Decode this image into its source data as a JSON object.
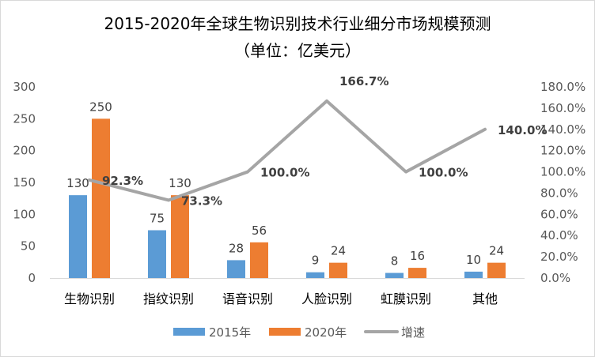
{
  "chart_data": {
    "type": "bar",
    "title": "2015-2020年全球生物识别技术行业细分市场规模预测",
    "subtitle": "（单位：亿美元）",
    "categories": [
      "生物识别",
      "指纹识别",
      "语音识别",
      "人脸识别",
      "虹膜识别",
      "其他"
    ],
    "series": [
      {
        "name": "2015年",
        "type": "bar",
        "axis": "left",
        "color": "#5b9bd5",
        "values": [
          130,
          75,
          28,
          9,
          8,
          10
        ]
      },
      {
        "name": "2020年",
        "type": "bar",
        "axis": "left",
        "color": "#ed7d31",
        "values": [
          250,
          130,
          56,
          24,
          16,
          24
        ]
      },
      {
        "name": "增速",
        "type": "line",
        "axis": "right",
        "color": "#a5a5a5",
        "values": [
          92.3,
          73.3,
          100.0,
          166.7,
          100.0,
          140.0
        ]
      }
    ],
    "bar_labels": [
      [
        "130",
        "75",
        "28",
        "9",
        "8",
        "10"
      ],
      [
        "250",
        "130",
        "56",
        "24",
        "16",
        "24"
      ]
    ],
    "rate_labels": [
      "92.3%",
      "73.3%",
      "100.0%",
      "166.7%",
      "100.0%",
      "140.0%"
    ],
    "y_left": {
      "min": 0,
      "max": 300,
      "ticks": [
        "0",
        "50",
        "100",
        "150",
        "200",
        "250",
        "300"
      ]
    },
    "y_right": {
      "min": 0,
      "max": 180,
      "ticks": [
        "0.0%",
        "20.0%",
        "40.0%",
        "60.0%",
        "80.0%",
        "100.0%",
        "120.0%",
        "140.0%",
        "160.0%",
        "180.0%"
      ]
    },
    "grid": false,
    "legend_position": "bottom"
  }
}
